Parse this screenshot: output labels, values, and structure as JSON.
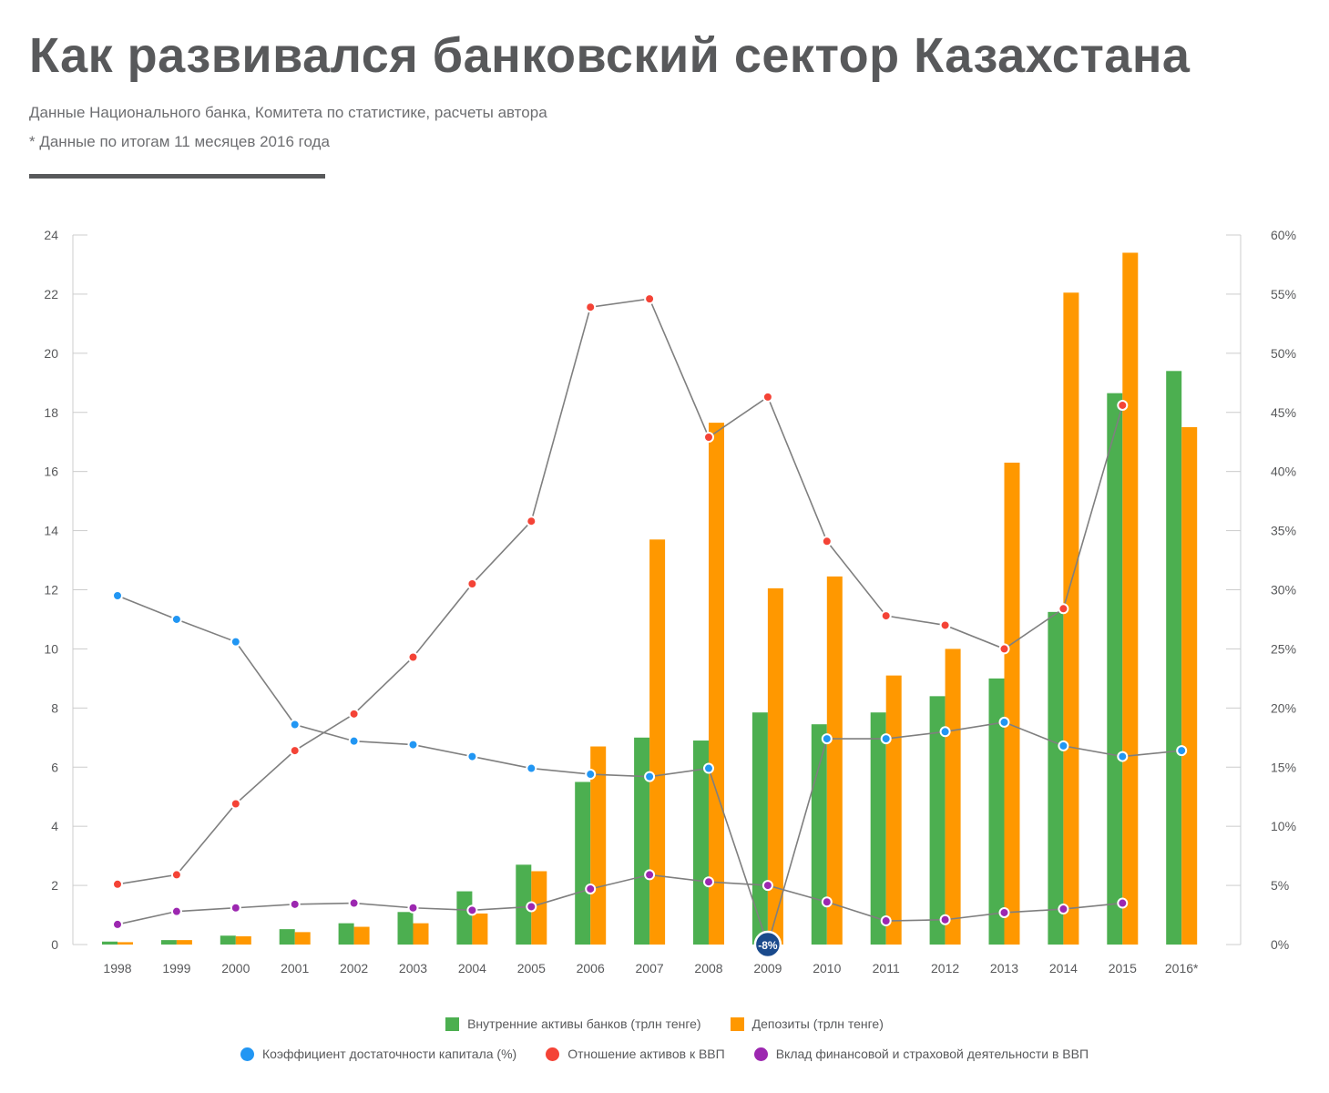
{
  "header": {
    "title": "Как развивался банковский сектор Казахстана",
    "subtitle": "Данные Национального банка, Комитета по статистике, расчеты автора",
    "note": "* Данные по итогам 11 месяцев 2016 года"
  },
  "colors": {
    "assets": "#4caf50",
    "deposits": "#ff9800",
    "capital": "#2196f3",
    "ratio": "#f44336",
    "contribution": "#9c27b0",
    "line": "#7f7f7f",
    "annotation": "#1a4a8c"
  },
  "chart_data": {
    "type": "bar",
    "categories": [
      "1998",
      "1999",
      "2000",
      "2001",
      "2002",
      "2003",
      "2004",
      "2005",
      "2006",
      "2007",
      "2008",
      "2009",
      "2010",
      "2011",
      "2012",
      "2013",
      "2014",
      "2015",
      "2016*"
    ],
    "y_left": {
      "ticks": [
        "0",
        "2",
        "4",
        "6",
        "8",
        "10",
        "12",
        "14",
        "16",
        "18",
        "20",
        "22",
        "24"
      ],
      "ylim": [
        0,
        24
      ]
    },
    "y_right": {
      "ticks": [
        "0%",
        "5%",
        "10%",
        "15%",
        "20%",
        "25%",
        "30%",
        "35%",
        "40%",
        "45%",
        "50%",
        "55%",
        "60%"
      ],
      "ylim": [
        0,
        60
      ]
    },
    "bar_series": [
      {
        "name": "Внутренние активы банков (трлн тенге)",
        "color": "#4caf50",
        "values": [
          0.1,
          0.15,
          0.3,
          0.52,
          0.72,
          1.1,
          1.8,
          2.7,
          5.5,
          7.0,
          6.9,
          7.85,
          7.45,
          7.85,
          8.4,
          9.0,
          11.25,
          18.65,
          19.4
        ]
      },
      {
        "name": "Депозиты (трлн тенге)",
        "color": "#ff9800",
        "values": [
          0.08,
          0.15,
          0.28,
          0.42,
          0.6,
          0.72,
          1.05,
          2.48,
          6.7,
          13.7,
          17.65,
          12.05,
          12.45,
          9.1,
          10.0,
          16.3,
          22.05,
          23.4,
          17.5
        ]
      }
    ],
    "line_series": [
      {
        "name": "Коэффициент достаточности капитала (%)",
        "color": "#2196f3",
        "values": [
          29.5,
          27.5,
          25.6,
          18.6,
          17.2,
          16.9,
          15.9,
          14.9,
          14.4,
          14.2,
          14.9,
          -8,
          17.4,
          17.4,
          18.0,
          18.8,
          16.8,
          15.9,
          16.4
        ]
      },
      {
        "name": "Отношение активов к ВВП",
        "color": "#f44336",
        "values": [
          5.1,
          5.9,
          11.9,
          16.4,
          19.5,
          24.3,
          30.5,
          35.8,
          53.9,
          54.6,
          42.9,
          46.3,
          34.1,
          27.8,
          27.0,
          25.0,
          28.4,
          45.6,
          null
        ]
      },
      {
        "name": "Вклад финансовой и страховой деятельности в ВВП",
        "color": "#9c27b0",
        "values": [
          1.7,
          2.8,
          3.1,
          3.4,
          3.5,
          3.1,
          2.9,
          3.2,
          4.7,
          5.9,
          5.3,
          5.0,
          3.6,
          2.0,
          2.1,
          2.7,
          3.0,
          3.5,
          null
        ]
      }
    ],
    "annotations": [
      {
        "category": "2009",
        "series": "Коэффициент достаточности капитала (%)",
        "label": "-8%"
      }
    ],
    "grid": false,
    "legend": "bottom"
  },
  "legend": {
    "row1": [
      {
        "label": "Внутренние активы банков (трлн тенге)",
        "color": "#4caf50"
      },
      {
        "label": "Депозиты (трлн тенге)",
        "color": "#ff9800"
      }
    ],
    "row2": [
      {
        "label": "Коэффициент достаточности капитала (%)",
        "color": "#2196f3"
      },
      {
        "label": "Отношение активов к ВВП",
        "color": "#f44336"
      },
      {
        "label": "Вклад финансовой и страховой деятельности в ВВП",
        "color": "#9c27b0"
      }
    ]
  }
}
